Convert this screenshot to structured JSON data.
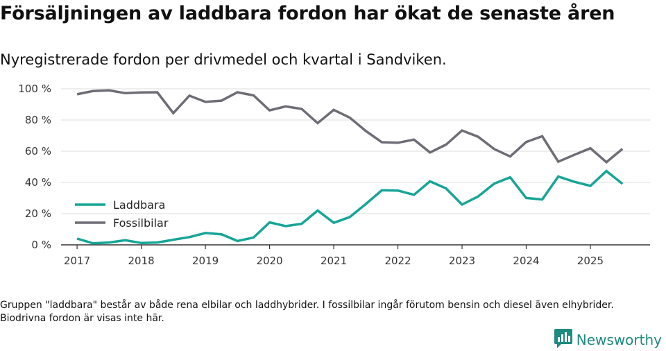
{
  "title": "Försäljningen av laddbara fordon har ökat de senaste åren",
  "subtitle": "Nyregistrerade fordon per drivmedel och kvartal i Sandviken.",
  "footnote": "Gruppen \"laddbara\" består av både rena elbilar och laddhybrider. I fossilbilar ingår förutom bensin och diesel även elhybrider. Biodrivna fordon är visas inte här.",
  "brand": {
    "name": "Newsworthy",
    "icon": "bar-chart-logo-icon",
    "color": "#1f8a80"
  },
  "colors": {
    "laddbara": "#16a597",
    "fossil": "#6e6d75",
    "grid": "#dddddd",
    "axis": "#333333"
  },
  "chart_data": {
    "type": "line",
    "title": "Försäljningen av laddbara fordon har ökat de senaste åren",
    "xlabel": "",
    "ylabel": "",
    "x": [
      2017.0,
      2017.25,
      2017.5,
      2017.75,
      2018.0,
      2018.25,
      2018.5,
      2018.75,
      2019.0,
      2019.25,
      2019.5,
      2019.75,
      2020.0,
      2020.25,
      2020.5,
      2020.75,
      2021.0,
      2021.25,
      2021.5,
      2021.75,
      2022.0,
      2022.25,
      2022.5,
      2022.75,
      2023.0,
      2023.25,
      2023.5,
      2023.75,
      2024.0,
      2024.25,
      2024.5,
      2024.75,
      2025.0,
      2025.25,
      2025.5
    ],
    "xlim": [
      2016.75,
      2025.93
    ],
    "ylim": [
      0,
      100
    ],
    "y_ticks": [
      0,
      20,
      40,
      60,
      80,
      100
    ],
    "y_tick_labels": [
      "0 %",
      "20 %",
      "40 %",
      "60 %",
      "80 %",
      "100 %"
    ],
    "x_ticks": [
      2017,
      2018,
      2019,
      2020,
      2021,
      2022,
      2023,
      2024,
      2025
    ],
    "x_tick_labels": [
      "2017",
      "2018",
      "2019",
      "2020",
      "2021",
      "2022",
      "2023",
      "2024",
      "2025"
    ],
    "grid": "horizontal",
    "legend_position": "center-left",
    "series": [
      {
        "key": "laddbara",
        "name": "Laddbara",
        "values": [
          4,
          1,
          1.5,
          3,
          1.2,
          1.5,
          3.3,
          5,
          7.6,
          6.8,
          2.5,
          4.7,
          14.4,
          12,
          13.5,
          22,
          14.2,
          17.8,
          26.2,
          35,
          34.8,
          32.1,
          40.7,
          36.2,
          25.8,
          31,
          39.2,
          43.3,
          30,
          29.1,
          43.8,
          40.4,
          37.8,
          47.3,
          39.1
        ]
      },
      {
        "key": "fossil",
        "name": "Fossilbilar",
        "values": [
          96.5,
          98.6,
          99,
          97.2,
          97.7,
          97.8,
          84.4,
          95.6,
          91.6,
          92.4,
          97.8,
          95.8,
          86.2,
          88.7,
          87.1,
          78,
          86.5,
          81.5,
          73,
          65.8,
          65.4,
          67.4,
          59.2,
          64.2,
          73.3,
          69.3,
          61.4,
          56.6,
          65.9,
          69.6,
          53.3,
          57.7,
          61.9,
          53,
          61.5
        ]
      }
    ]
  }
}
